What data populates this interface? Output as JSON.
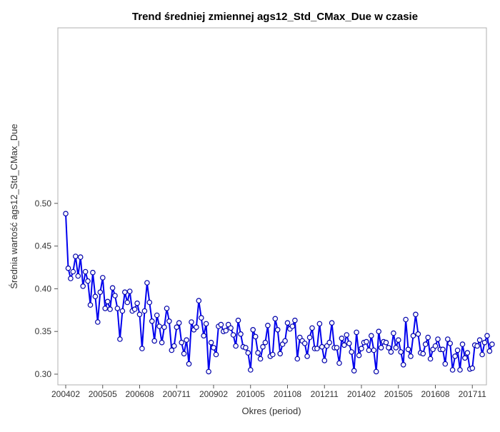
{
  "chart_data": {
    "type": "line",
    "title": "Trend średniej zmiennej ags12_Std_CMax_Due w czasie",
    "xlabel": "Okres (period)",
    "ylabel": "Średnia wartość ags12_Std_CMax_Due",
    "ylim": [
      0.3,
      0.5
    ],
    "yticks": [
      "0.30",
      "0.35",
      "0.40",
      "0.45",
      "0.50"
    ],
    "xticks": [
      "200402",
      "200505",
      "200608",
      "200711",
      "200902",
      "201005",
      "201108",
      "201211",
      "201402",
      "201505",
      "201608",
      "201711"
    ],
    "grid": false,
    "legend": "none",
    "line_color": "#0000ee",
    "marker_color": "#0000aa",
    "x_start": "200402",
    "x_end": "201809",
    "series": [
      {
        "values": [
          0.488,
          0.424,
          0.412,
          0.42,
          0.438,
          0.415,
          0.437,
          0.403,
          0.42,
          0.409,
          0.381,
          0.419,
          0.391,
          0.361,
          0.396,
          0.413,
          0.377,
          0.385,
          0.376,
          0.401,
          0.392,
          0.377,
          0.341,
          0.374,
          0.396,
          0.384,
          0.397,
          0.374,
          0.376,
          0.383,
          0.37,
          0.33,
          0.374,
          0.407,
          0.384,
          0.362,
          0.339,
          0.369,
          0.356,
          0.337,
          0.355,
          0.377,
          0.362,
          0.328,
          0.333,
          0.355,
          0.36,
          0.337,
          0.324,
          0.34,
          0.312,
          0.361,
          0.352,
          0.355,
          0.386,
          0.366,
          0.345,
          0.359,
          0.303,
          0.337,
          0.331,
          0.323,
          0.356,
          0.358,
          0.35,
          0.351,
          0.358,
          0.354,
          0.346,
          0.333,
          0.363,
          0.347,
          0.332,
          0.331,
          0.325,
          0.305,
          0.352,
          0.344,
          0.325,
          0.318,
          0.332,
          0.337,
          0.357,
          0.321,
          0.323,
          0.365,
          0.352,
          0.324,
          0.335,
          0.339,
          0.36,
          0.353,
          0.356,
          0.363,
          0.318,
          0.343,
          0.339,
          0.336,
          0.321,
          0.343,
          0.354,
          0.33,
          0.33,
          0.359,
          0.332,
          0.316,
          0.333,
          0.337,
          0.36,
          0.331,
          0.331,
          0.313,
          0.342,
          0.334,
          0.346,
          0.336,
          0.326,
          0.304,
          0.349,
          0.322,
          0.33,
          0.337,
          0.338,
          0.328,
          0.345,
          0.328,
          0.303,
          0.35,
          0.331,
          0.338,
          0.337,
          0.331,
          0.326,
          0.348,
          0.331,
          0.34,
          0.326,
          0.311,
          0.364,
          0.329,
          0.321,
          0.345,
          0.37,
          0.347,
          0.325,
          0.324,
          0.335,
          0.343,
          0.318,
          0.329,
          0.333,
          0.341,
          0.329,
          0.329,
          0.312,
          0.341,
          0.336,
          0.305,
          0.321,
          0.328,
          0.305,
          0.335,
          0.319,
          0.325,
          0.306,
          0.307,
          0.334,
          0.333,
          0.34,
          0.323,
          0.337,
          0.345,
          0.327,
          0.335
        ]
      }
    ]
  }
}
